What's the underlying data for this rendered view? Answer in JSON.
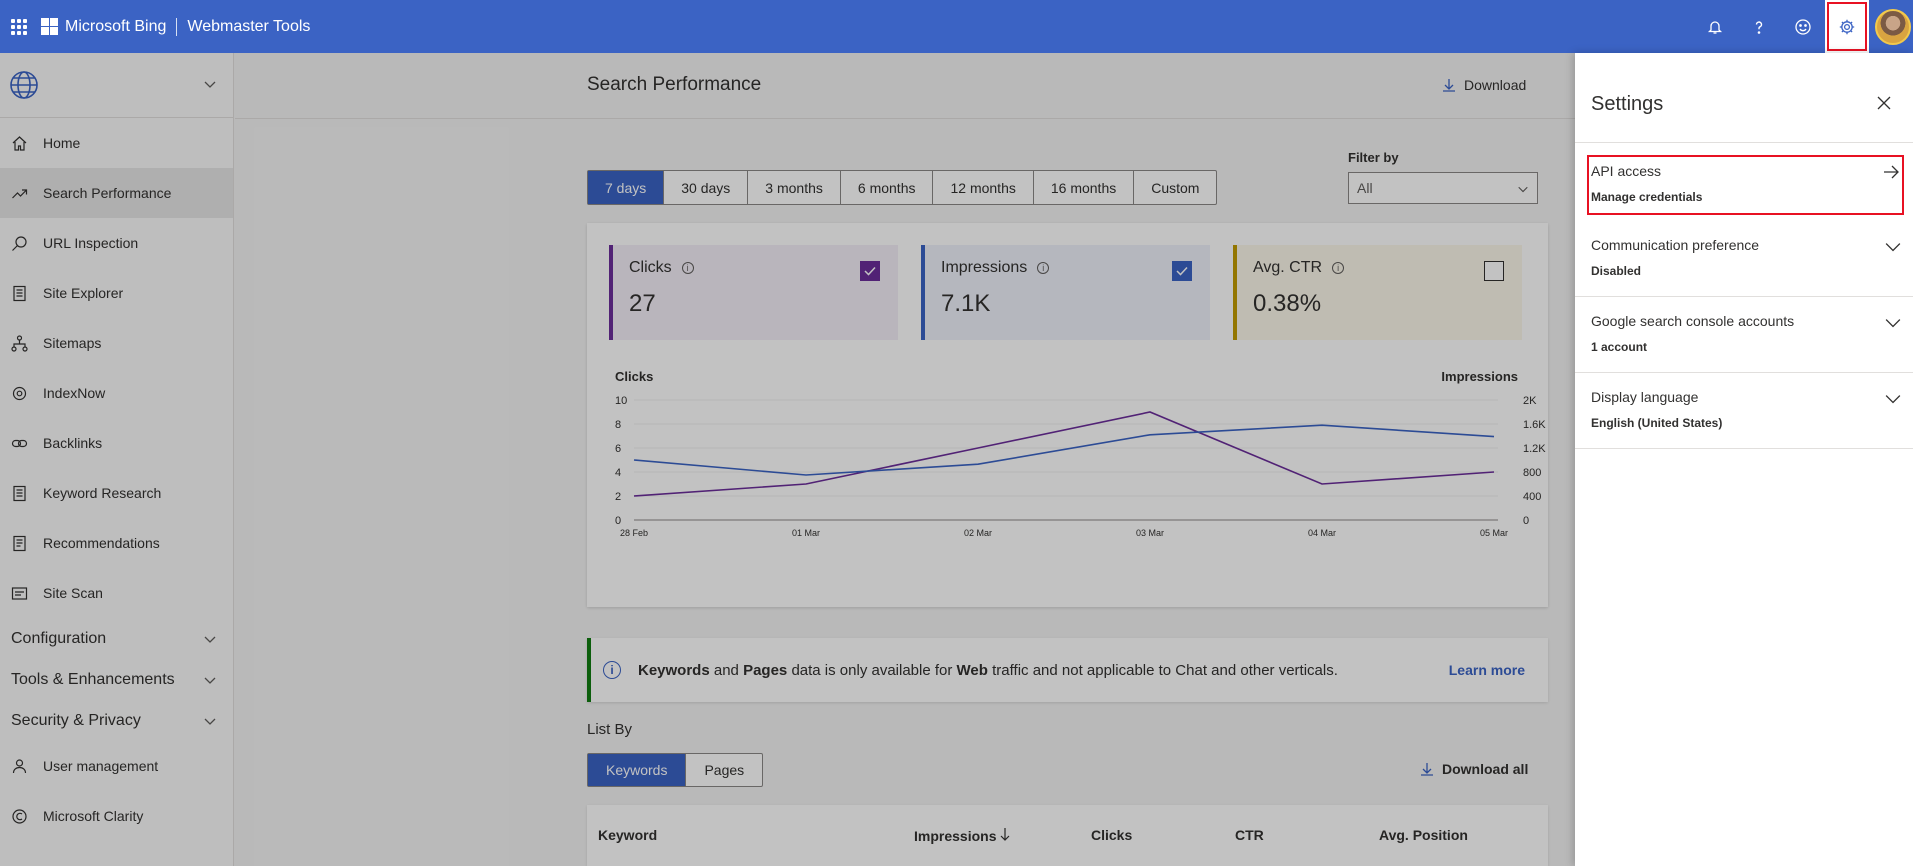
{
  "header": {
    "brand": "Microsoft Bing",
    "product": "Webmaster Tools"
  },
  "sidebar": {
    "items": [
      {
        "label": "Home",
        "icon": "home-icon"
      },
      {
        "label": "Search Performance",
        "icon": "trend-icon",
        "selected": true
      },
      {
        "label": "URL Inspection",
        "icon": "search-icon"
      },
      {
        "label": "Site Explorer",
        "icon": "document-icon"
      },
      {
        "label": "Sitemaps",
        "icon": "sitemap-icon"
      },
      {
        "label": "IndexNow",
        "icon": "gear-icon"
      },
      {
        "label": "Backlinks",
        "icon": "link-icon"
      },
      {
        "label": "Keyword Research",
        "icon": "document-icon"
      },
      {
        "label": "Recommendations",
        "icon": "list-icon"
      },
      {
        "label": "Site Scan",
        "icon": "scan-icon"
      }
    ],
    "groups": [
      {
        "label": "Configuration"
      },
      {
        "label": "Tools & Enhancements"
      },
      {
        "label": "Security & Privacy"
      }
    ],
    "bottom_items": [
      {
        "label": "User management",
        "icon": "user-icon"
      },
      {
        "label": "Microsoft Clarity",
        "icon": "clarity-icon"
      }
    ]
  },
  "main": {
    "title": "Search Performance",
    "download": "Download",
    "ranges": [
      "7 days",
      "30 days",
      "3 months",
      "6 months",
      "12 months",
      "16 months",
      "Custom"
    ],
    "active_range": "7 days",
    "filter_label": "Filter by",
    "filter_value": "All",
    "metrics": {
      "clicks": {
        "label": "Clicks",
        "value": "27",
        "checked": true
      },
      "impressions": {
        "label": "Impressions",
        "value": "7.1K",
        "checked": true
      },
      "ctr": {
        "label": "Avg. CTR",
        "value": "0.38%",
        "checked": false
      }
    },
    "notice": {
      "b1": "Keywords",
      "t1": " and ",
      "b2": "Pages",
      "t2": " data is only available for ",
      "b3": "Web",
      "t3": " traffic and not applicable to Chat and other verticals.",
      "link": "Learn more"
    },
    "list_by": "List By",
    "list_tabs": [
      "Keywords",
      "Pages"
    ],
    "download_all": "Download all",
    "table_headers": [
      "Keyword",
      "Impressions",
      "Clicks",
      "CTR",
      "Avg. Position"
    ]
  },
  "chart_data": {
    "type": "line",
    "x": [
      "28 Feb",
      "01 Mar",
      "02 Mar",
      "03 Mar",
      "04 Mar",
      "05 Mar"
    ],
    "series": [
      {
        "name": "Clicks",
        "axis": "left",
        "color": "#6b2d9a",
        "values": [
          2,
          3,
          6,
          9,
          3,
          4
        ]
      },
      {
        "name": "Impressions",
        "axis": "right",
        "color": "#3b63c4",
        "values": [
          1000,
          750,
          930,
          1420,
          1580,
          1390
        ]
      }
    ],
    "ylabel_left": "Clicks",
    "ylabel_right": "Impressions",
    "yticks_left": [
      "0",
      "2",
      "4",
      "6",
      "8",
      "10"
    ],
    "yticks_right": [
      "0",
      "400",
      "800",
      "1.2K",
      "1.6K",
      "2K"
    ],
    "ylim_left": [
      0,
      10
    ],
    "ylim_right": [
      0,
      2000
    ],
    "grid": true
  },
  "settings_panel": {
    "title": "Settings",
    "items": [
      {
        "title": "API access",
        "sub": "Manage credentials",
        "icon": "arrow-right-icon"
      },
      {
        "title": "Communication preference",
        "sub": "Disabled",
        "icon": "chevron-down-icon"
      },
      {
        "title": "Google search console accounts",
        "sub": "1 account",
        "icon": "chevron-down-icon"
      },
      {
        "title": "Display language",
        "sub": "English (United States)",
        "icon": "chevron-down-icon"
      }
    ]
  }
}
